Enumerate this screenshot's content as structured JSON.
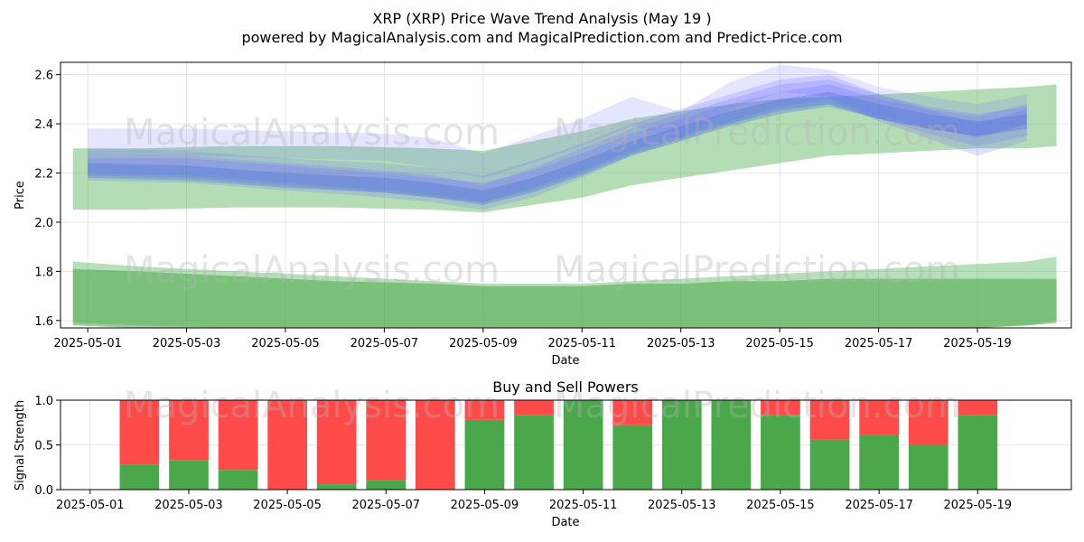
{
  "header": {
    "title": "XRP (XRP) Price Wave Trend Analysis (May 19 )",
    "subtitle": "powered by MagicalAnalysis.com and MagicalPrediction.com and Predict-Price.com"
  },
  "watermarks": [
    "MagicalAnalysis.com",
    "MagicalPrediction.com"
  ],
  "colors": {
    "blue_band": "#6f6fff",
    "green_band": "#4caf50",
    "dark_green": "#4aa84a",
    "buy": "#4aa84a",
    "sell": "#ff4a4a"
  },
  "chart_data": [
    {
      "type": "area",
      "title": "",
      "xlabel": "Date",
      "ylabel": "Price",
      "ylim": [
        1.57,
        2.65
      ],
      "y_ticks": [
        "1.6",
        "1.8",
        "2.0",
        "2.2",
        "2.4",
        "2.6"
      ],
      "x_ticks": [
        "2025-05-01",
        "2025-05-03",
        "2025-05-05",
        "2025-05-07",
        "2025-05-09",
        "2025-05-11",
        "2025-05-13",
        "2025-05-15",
        "2025-05-17",
        "2025-05-19"
      ],
      "grid": true,
      "x_day_range": [
        -0.55,
        19.9
      ],
      "series": [
        {
          "name": "upper-green-band",
          "x": [
            -0.3,
            1,
            3,
            5,
            7,
            8,
            9,
            10,
            11,
            12,
            13,
            14,
            15,
            16,
            17,
            18,
            19,
            19.6
          ],
          "upper": [
            2.3,
            2.3,
            2.31,
            2.31,
            2.3,
            2.29,
            2.33,
            2.37,
            2.42,
            2.45,
            2.48,
            2.5,
            2.51,
            2.52,
            2.53,
            2.54,
            2.55,
            2.56
          ],
          "lower": [
            2.05,
            2.05,
            2.06,
            2.06,
            2.05,
            2.04,
            2.07,
            2.1,
            2.15,
            2.18,
            2.21,
            2.24,
            2.27,
            2.28,
            2.29,
            2.3,
            2.3,
            2.31
          ]
        },
        {
          "name": "wave-1",
          "x": [
            0,
            2,
            4,
            6,
            7,
            8,
            9,
            10,
            11,
            12,
            13,
            14,
            15,
            16,
            17,
            18,
            19
          ],
          "upper": [
            2.28,
            2.27,
            2.24,
            2.21,
            2.19,
            2.15,
            2.22,
            2.3,
            2.38,
            2.44,
            2.5,
            2.56,
            2.58,
            2.52,
            2.47,
            2.44,
            2.47
          ],
          "lower": [
            2.17,
            2.16,
            2.13,
            2.1,
            2.08,
            2.05,
            2.1,
            2.18,
            2.27,
            2.33,
            2.4,
            2.46,
            2.48,
            2.42,
            2.36,
            2.31,
            2.35
          ]
        },
        {
          "name": "wave-2",
          "x": [
            0,
            2,
            4,
            6,
            7,
            8,
            9,
            10,
            11,
            12,
            13,
            14,
            15,
            16,
            17,
            18,
            19
          ],
          "upper": [
            2.38,
            2.38,
            2.37,
            2.36,
            2.34,
            2.28,
            2.35,
            2.42,
            2.51,
            2.45,
            2.57,
            2.64,
            2.62,
            2.55,
            2.51,
            2.48,
            2.52
          ],
          "lower": [
            2.28,
            2.27,
            2.26,
            2.25,
            2.22,
            2.18,
            2.24,
            2.31,
            2.39,
            2.34,
            2.46,
            2.53,
            2.51,
            2.43,
            2.39,
            2.34,
            2.4
          ]
        },
        {
          "name": "wave-3",
          "x": [
            0,
            2,
            4,
            6,
            7,
            8,
            9,
            10,
            11,
            12,
            13,
            14,
            15,
            16,
            17,
            18,
            19
          ],
          "upper": [
            2.3,
            2.29,
            2.26,
            2.24,
            2.22,
            2.19,
            2.25,
            2.32,
            2.4,
            2.46,
            2.52,
            2.58,
            2.6,
            2.52,
            2.46,
            2.4,
            2.46
          ],
          "lower": [
            2.2,
            2.19,
            2.16,
            2.13,
            2.11,
            2.08,
            2.14,
            2.21,
            2.29,
            2.35,
            2.41,
            2.47,
            2.5,
            2.41,
            2.34,
            2.27,
            2.33
          ]
        },
        {
          "name": "wave-4",
          "x": [
            0,
            2,
            4,
            6,
            7,
            8,
            9,
            10,
            11,
            12,
            13,
            14,
            15,
            16,
            17,
            18,
            19
          ],
          "upper": [
            2.26,
            2.26,
            2.23,
            2.2,
            2.18,
            2.16,
            2.21,
            2.28,
            2.36,
            2.42,
            2.48,
            2.53,
            2.56,
            2.5,
            2.46,
            2.43,
            2.48
          ],
          "lower": [
            2.19,
            2.18,
            2.15,
            2.12,
            2.1,
            2.08,
            2.13,
            2.2,
            2.28,
            2.34,
            2.4,
            2.45,
            2.48,
            2.42,
            2.38,
            2.35,
            2.4
          ]
        },
        {
          "name": "wave-5",
          "x": [
            0,
            2,
            4,
            6,
            7,
            8,
            9,
            10,
            11,
            12,
            13,
            14,
            15,
            16,
            17,
            18,
            19
          ],
          "upper": [
            2.24,
            2.23,
            2.2,
            2.18,
            2.16,
            2.13,
            2.18,
            2.25,
            2.33,
            2.39,
            2.45,
            2.5,
            2.53,
            2.48,
            2.44,
            2.41,
            2.44
          ],
          "lower": [
            2.18,
            2.17,
            2.14,
            2.12,
            2.1,
            2.07,
            2.12,
            2.19,
            2.27,
            2.33,
            2.39,
            2.44,
            2.47,
            2.42,
            2.38,
            2.35,
            2.38
          ]
        },
        {
          "name": "light-green-band",
          "x": [
            -0.3,
            1,
            3,
            5,
            7,
            8,
            9,
            10,
            11,
            12,
            13,
            14,
            15,
            16,
            17,
            18,
            19,
            19.6
          ],
          "upper": [
            1.84,
            1.82,
            1.8,
            1.78,
            1.76,
            1.75,
            1.75,
            1.75,
            1.76,
            1.77,
            1.78,
            1.79,
            1.8,
            1.81,
            1.82,
            1.83,
            1.84,
            1.86
          ],
          "lower": [
            1.59,
            1.58,
            1.57,
            1.57,
            1.57,
            1.57,
            1.57,
            1.57,
            1.57,
            1.57,
            1.57,
            1.57,
            1.57,
            1.57,
            1.57,
            1.57,
            1.58,
            1.6
          ]
        },
        {
          "name": "dark-green-band",
          "x": [
            -0.3,
            1,
            3,
            5,
            7,
            8,
            9,
            10,
            11,
            12,
            13,
            14,
            15,
            16,
            17,
            18,
            19,
            19.6
          ],
          "upper": [
            1.81,
            1.8,
            1.78,
            1.76,
            1.75,
            1.74,
            1.74,
            1.74,
            1.75,
            1.75,
            1.76,
            1.76,
            1.77,
            1.77,
            1.77,
            1.77,
            1.77,
            1.77
          ],
          "lower": [
            1.58,
            1.57,
            1.57,
            1.57,
            1.57,
            1.57,
            1.57,
            1.57,
            1.57,
            1.57,
            1.57,
            1.57,
            1.57,
            1.57,
            1.57,
            1.57,
            1.58,
            1.59
          ]
        }
      ]
    },
    {
      "type": "bar",
      "title": "Buy and Sell Powers",
      "xlabel": "Date",
      "ylabel": "Signal Strength",
      "ylim": [
        0,
        1.0
      ],
      "y_ticks": [
        "0.0",
        "0.5",
        "1.0"
      ],
      "x_ticks": [
        "2025-05-01",
        "2025-05-03",
        "2025-05-05",
        "2025-05-07",
        "2025-05-09",
        "2025-05-11",
        "2025-05-13",
        "2025-05-15",
        "2025-05-17",
        "2025-05-19"
      ],
      "x_day_range": [
        -0.6,
        19.9
      ],
      "categories": [
        "2025-05-02",
        "2025-05-03",
        "2025-05-04",
        "2025-05-05",
        "2025-05-06",
        "2025-05-07",
        "2025-05-08",
        "2025-05-09",
        "2025-05-10",
        "2025-05-11",
        "2025-05-12",
        "2025-05-13",
        "2025-05-14",
        "2025-05-15",
        "2025-05-16",
        "2025-05-17",
        "2025-05-18",
        "2025-05-19"
      ],
      "series": [
        {
          "name": "Buy",
          "values": [
            0.28,
            0.33,
            0.22,
            0.0,
            0.06,
            0.11,
            0.0,
            0.78,
            0.83,
            1.0,
            0.72,
            1.0,
            1.0,
            0.83,
            0.56,
            0.61,
            0.5,
            0.83
          ]
        },
        {
          "name": "Sell",
          "values": [
            0.72,
            0.67,
            0.78,
            1.0,
            0.94,
            0.89,
            1.0,
            0.22,
            0.17,
            0.0,
            0.28,
            0.0,
            0.0,
            0.17,
            0.44,
            0.39,
            0.5,
            0.17
          ]
        }
      ]
    }
  ]
}
